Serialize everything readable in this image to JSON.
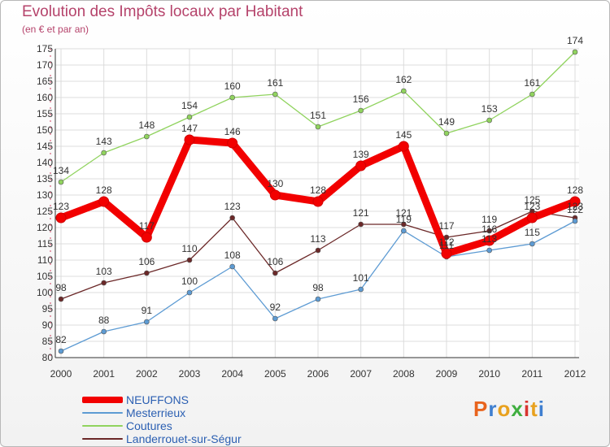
{
  "header": {
    "title": "Evolution des Impôts locaux par Habitant",
    "subtitle": "(en € et par an)"
  },
  "chart_data": {
    "type": "line",
    "title": "Evolution des Impôts locaux par Habitant",
    "subtitle": "(en € et par an)",
    "xlabel": "",
    "ylabel": "",
    "ylim": [
      80,
      175
    ],
    "yticks": [
      80,
      85,
      90,
      95,
      100,
      105,
      110,
      115,
      120,
      125,
      130,
      135,
      140,
      145,
      150,
      155,
      160,
      165,
      170,
      175
    ],
    "grid": true,
    "legend_position": "bottom-left",
    "categories": [
      "2000",
      "2001",
      "2002",
      "2003",
      "2004",
      "2005",
      "2006",
      "2007",
      "2008",
      "2009",
      "2010",
      "2011",
      "2012"
    ],
    "series": [
      {
        "name": "NEUFFONS",
        "color": "#f20000",
        "values": [
          123,
          128,
          117,
          147,
          146,
          130,
          128,
          139,
          145,
          112,
          116,
          123,
          128
        ]
      },
      {
        "name": "Mesterrieux",
        "color": "#5d9bd3",
        "values": [
          82,
          88,
          91,
          100,
          108,
          92,
          98,
          101,
          119,
          111,
          113,
          115,
          122
        ]
      },
      {
        "name": "Coutures",
        "color": "#90d35e",
        "values": [
          134,
          143,
          148,
          154,
          160,
          161,
          151,
          156,
          162,
          149,
          153,
          161,
          174
        ]
      },
      {
        "name": "Landerrouet-sur-Ségur",
        "color": "#6b2828",
        "values": [
          98,
          103,
          106,
          110,
          123,
          106,
          113,
          121,
          121,
          117,
          119,
          125,
          123
        ]
      }
    ]
  },
  "logo": {
    "text": "Proxiti",
    "colors": [
      "#e8641e",
      "#3f7fd0",
      "#e8a11e",
      "#3fae3f",
      "#d8342f",
      "#e8a11e",
      "#3f7fd0"
    ]
  }
}
